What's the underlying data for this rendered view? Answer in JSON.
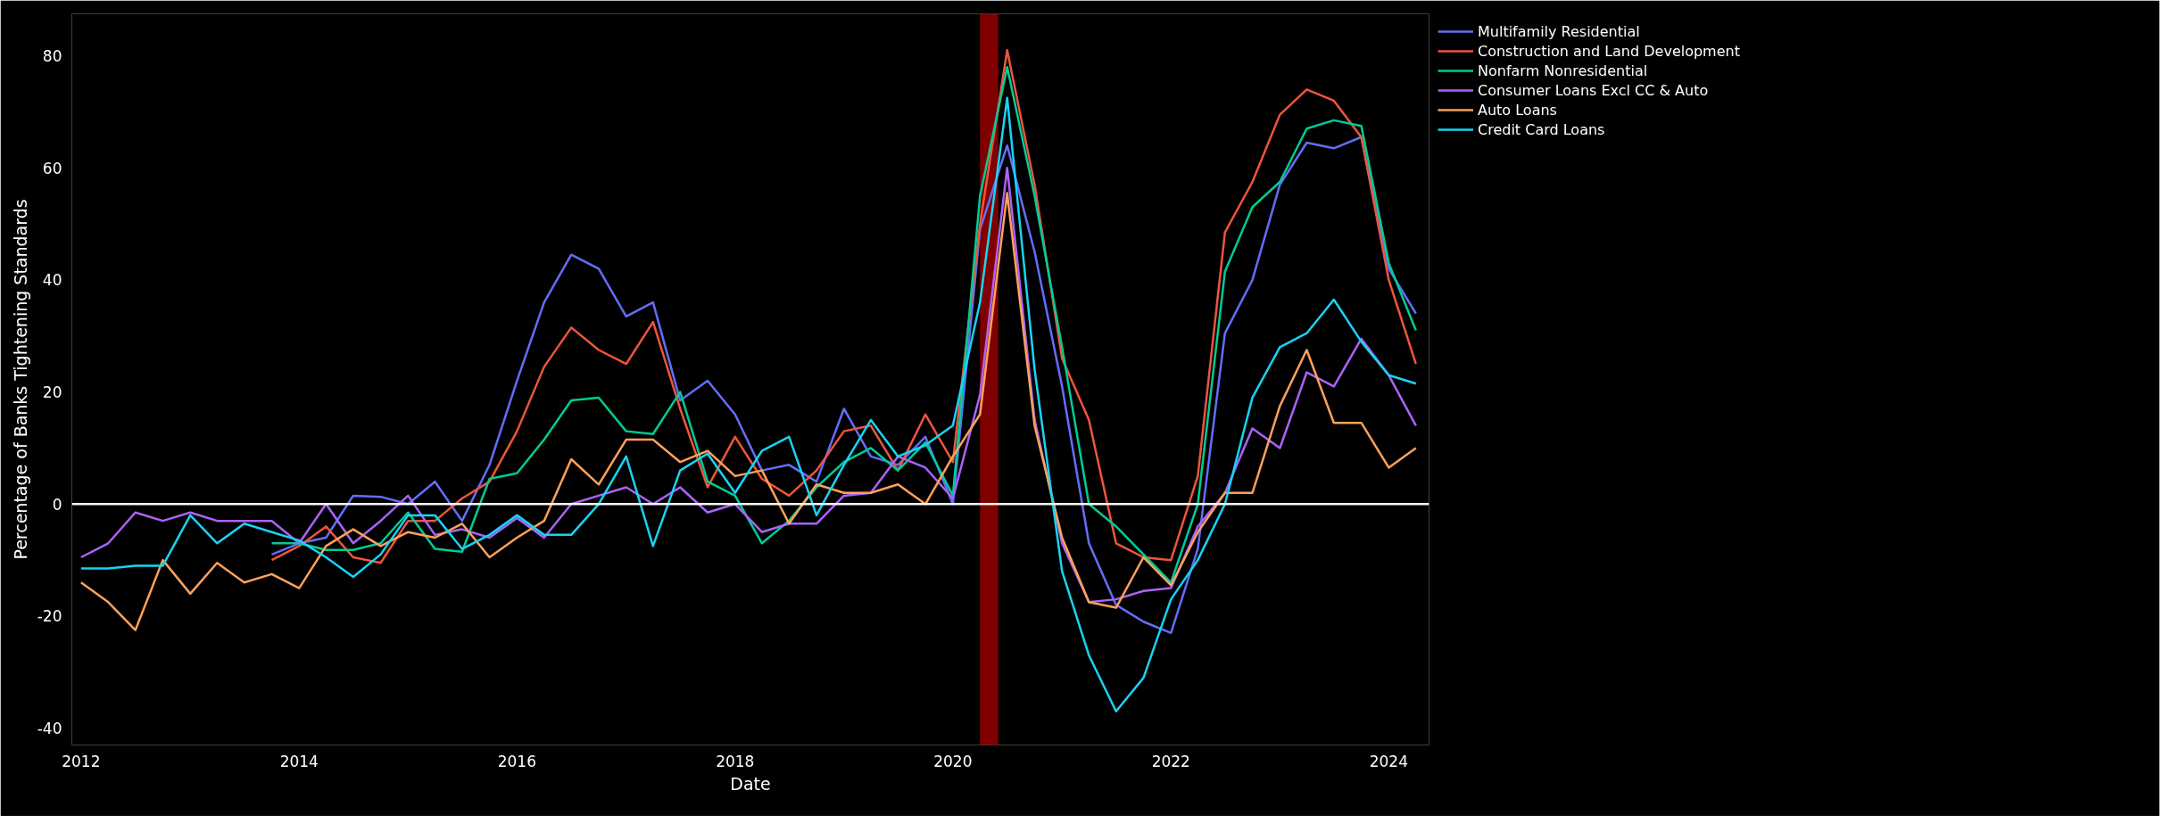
{
  "chart_data": {
    "type": "line",
    "xlabel": "Date",
    "ylabel": "Percentage of Banks Tightening Standards",
    "x": [
      "2012-01-01",
      "2012-04-01",
      "2012-07-01",
      "2012-10-01",
      "2013-01-01",
      "2013-04-01",
      "2013-07-01",
      "2013-10-01",
      "2014-01-01",
      "2014-04-01",
      "2014-07-01",
      "2014-10-01",
      "2015-01-01",
      "2015-04-01",
      "2015-07-01",
      "2015-10-01",
      "2016-01-01",
      "2016-04-01",
      "2016-07-01",
      "2016-10-01",
      "2017-01-01",
      "2017-04-01",
      "2017-07-01",
      "2017-10-01",
      "2018-01-01",
      "2018-04-01",
      "2018-07-01",
      "2018-10-01",
      "2019-01-01",
      "2019-04-01",
      "2019-07-01",
      "2019-10-01",
      "2020-01-01",
      "2020-04-01",
      "2020-07-01",
      "2020-10-01",
      "2021-01-01",
      "2021-04-01",
      "2021-07-01",
      "2021-10-01",
      "2022-01-01",
      "2022-04-01",
      "2022-07-01",
      "2022-10-01",
      "2023-01-01",
      "2023-04-01",
      "2023-07-01",
      "2023-10-01",
      "2024-01-01",
      "2024-04-01"
    ],
    "series": [
      {
        "name": "Multifamily Residential",
        "color": "#636efa",
        "values": [
          null,
          null,
          null,
          null,
          null,
          null,
          null,
          -9,
          -7,
          -6,
          1.5,
          1.3,
          0,
          4,
          -3,
          7,
          22,
          36,
          44.5,
          42,
          33.5,
          36,
          18.5,
          22,
          16,
          6,
          7,
          4,
          17,
          8.5,
          7,
          12,
          0,
          49,
          64,
          45,
          21,
          -7,
          -18,
          -21,
          -23,
          -8,
          30.5,
          40,
          57,
          64.5,
          63.5,
          65.5,
          42,
          34
        ]
      },
      {
        "name": "Construction and Land Development",
        "color": "#ef553b",
        "values": [
          null,
          null,
          null,
          null,
          null,
          null,
          null,
          -10,
          -7.5,
          -4,
          -9.5,
          -10.5,
          -3,
          -3,
          1,
          4,
          13,
          24.5,
          31.5,
          27.5,
          25,
          32.5,
          17,
          3,
          12,
          4.5,
          1.5,
          6,
          13,
          14,
          6,
          16,
          7.5,
          50,
          81,
          57,
          26,
          15,
          -7,
          -9.5,
          -10,
          5,
          48.5,
          57.5,
          69.5,
          74,
          72,
          65.5,
          40,
          25
        ]
      },
      {
        "name": "Nonfarm Nonresidential",
        "color": "#00cc96",
        "values": [
          null,
          null,
          null,
          null,
          null,
          null,
          null,
          -7,
          -7,
          -8.2,
          -8.2,
          -7,
          -1.5,
          -8,
          -8.5,
          4.5,
          5.5,
          11.5,
          18.5,
          19,
          13,
          12.5,
          20,
          4,
          1.5,
          -7,
          -3,
          3,
          7.5,
          10,
          6,
          11,
          1.5,
          55,
          78,
          55,
          28,
          0,
          -4,
          -9,
          -14,
          0,
          41.5,
          53,
          57.5,
          67,
          68.5,
          67.5,
          43,
          31
        ]
      },
      {
        "name": "Consumer Loans Excl CC & Auto",
        "color": "#ab63fa",
        "values": [
          -9.5,
          -7,
          -1.5,
          -3,
          -1.5,
          -3,
          -3,
          -3,
          -7,
          0,
          -7,
          -3,
          1.5,
          -5.5,
          -4.5,
          -6,
          -2.5,
          -6,
          0,
          1.5,
          3,
          0,
          3,
          -1.5,
          0,
          -5,
          -3.5,
          -3.5,
          1.5,
          2,
          8.5,
          6.5,
          1,
          19.5,
          60,
          15,
          -7,
          -17.5,
          -17,
          -15.5,
          -15,
          -4,
          2,
          13.5,
          10,
          23.5,
          21,
          29.5,
          23,
          14
        ]
      },
      {
        "name": "Auto Loans",
        "color": "#ffa15a",
        "values": [
          -14,
          -17.5,
          -22.5,
          -10,
          -16,
          -10.5,
          -14,
          -12.5,
          -15,
          -7.5,
          -4.5,
          -7.5,
          -5,
          -6,
          -3.5,
          -9.5,
          -6,
          -3,
          8,
          3.5,
          11.5,
          11.5,
          7.5,
          9.5,
          5,
          6,
          -3.5,
          3.5,
          2,
          2,
          3.5,
          0,
          8.5,
          16,
          55.5,
          14,
          -6,
          -17.5,
          -18.5,
          -9.5,
          -14.5,
          -5,
          2,
          2,
          17.5,
          27.5,
          14.5,
          14.5,
          6.5,
          10
        ]
      },
      {
        "name": "Credit Card Loans",
        "color": "#19d3f3",
        "values": [
          -11.5,
          -11.5,
          -11,
          -11,
          -2,
          -7,
          -3.5,
          -5,
          -6.5,
          -9.5,
          -13,
          -9,
          -2,
          -2,
          -8,
          -5.5,
          -2,
          -5.5,
          -5.5,
          0,
          8.5,
          -7.5,
          6,
          9,
          2,
          9.5,
          12,
          -2,
          7,
          15,
          8.5,
          10.5,
          14,
          36,
          72.5,
          24,
          -12,
          -27,
          -37,
          -31,
          -17,
          -10,
          0,
          19,
          28,
          30.5,
          36.5,
          29,
          23,
          21.5
        ]
      }
    ],
    "xlim": [
      "2011-12-01",
      "2024-05-15"
    ],
    "ylim": [
      -43,
      87.5
    ],
    "xticks": [
      {
        "value": "2012-01-01",
        "label": "2012"
      },
      {
        "value": "2014-01-01",
        "label": "2014"
      },
      {
        "value": "2016-01-01",
        "label": "2016"
      },
      {
        "value": "2018-01-01",
        "label": "2018"
      },
      {
        "value": "2020-01-01",
        "label": "2020"
      },
      {
        "value": "2022-01-01",
        "label": "2022"
      },
      {
        "value": "2024-01-01",
        "label": "2024"
      }
    ],
    "yticks": [
      -40,
      -20,
      0,
      20,
      40,
      60,
      80
    ],
    "ref_lines": [
      {
        "axis": "y",
        "value": 0,
        "label": null,
        "color": "#ffffff"
      }
    ],
    "bands": [
      {
        "axis": "x",
        "from": "2020-04-01",
        "to": "2020-06-01",
        "label": null,
        "color": "#800000"
      }
    ],
    "grid": false,
    "legend": "top right",
    "marker": "none",
    "line_style": "solid"
  }
}
